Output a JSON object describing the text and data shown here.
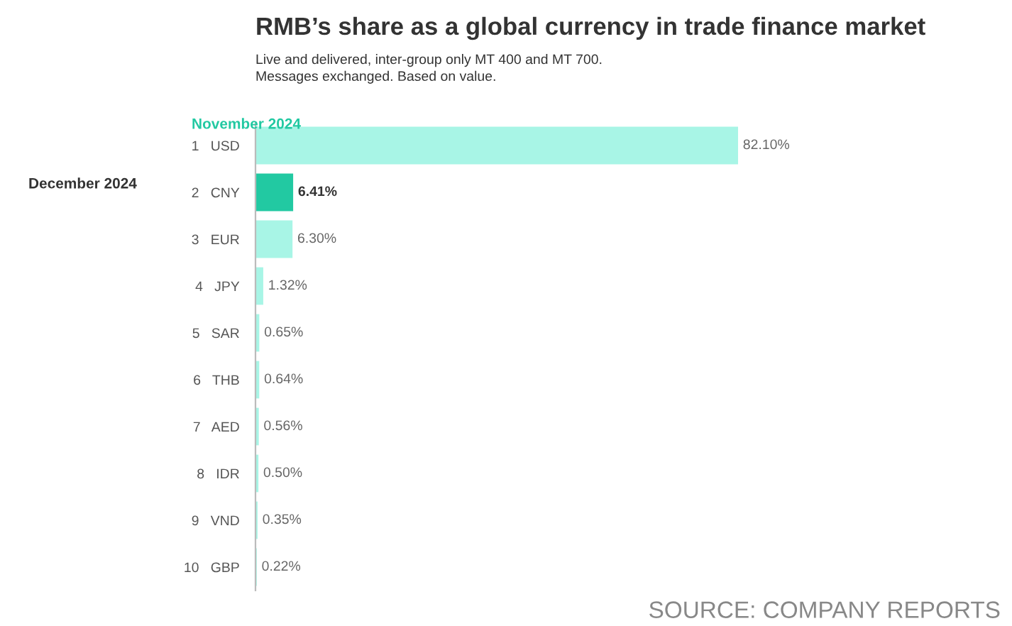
{
  "chart_data": {
    "type": "bar",
    "orientation": "horizontal",
    "title": "RMB’s share as a global currency in trade finance market",
    "subtitle": "Live and delivered, inter-group only MT 400 and MT 700.\nMessages exchanged. Based on value.",
    "categories": [
      "1   USD",
      "2   CNY",
      "3   EUR",
      "4   JPY",
      "5   SAR",
      "6   THB",
      "7   AED",
      "8   IDR",
      "9   VND",
      "10   GBP"
    ],
    "values": [
      82.1,
      6.41,
      6.3,
      1.32,
      0.65,
      0.64,
      0.56,
      0.5,
      0.35,
      0.22
    ],
    "value_labels": [
      "82.10%",
      "6.41%",
      "6.30%",
      "1.32%",
      "0.65%",
      "0.64%",
      "0.56%",
      "0.50%",
      "0.35%",
      "0.22%"
    ],
    "colors": [
      "#a8f5e6",
      "#22c9a2",
      "#a8f5e6",
      "#a8f5e6",
      "#a8f5e6",
      "#a8f5e6",
      "#a8f5e6",
      "#a8f5e6",
      "#a8f5e6",
      "#a8f5e6"
    ],
    "annotations": [
      "November 2024",
      "December 2024",
      "SOURCE: COMPANY REPORTS"
    ]
  }
}
